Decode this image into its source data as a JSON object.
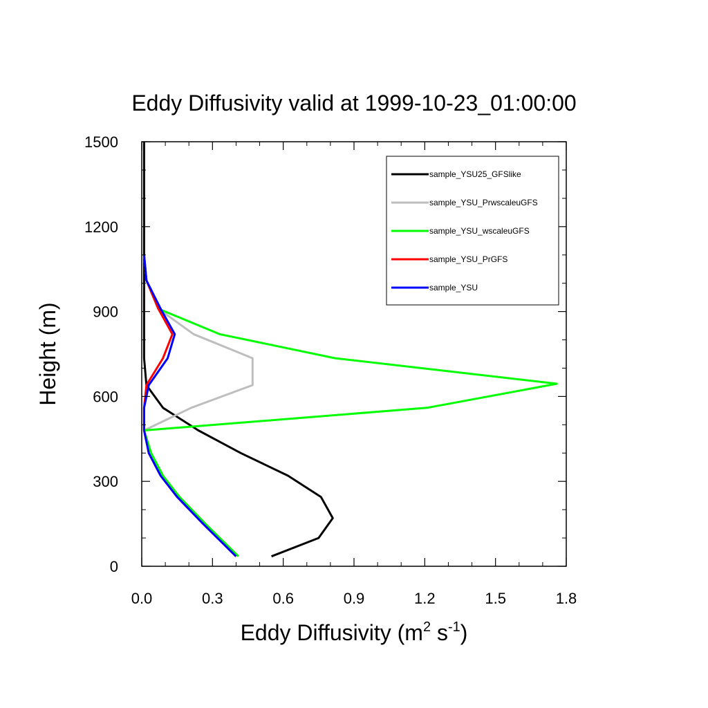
{
  "chart_data": {
    "type": "line",
    "title": "Eddy Diffusivity valid at 1999-10-23_01:00:00",
    "xlabel": {
      "base": "Eddy Diffusivity (m",
      "sup1": "2",
      "mid": " s",
      "sup2": "-1",
      "end": ")"
    },
    "ylabel": "Height (m)",
    "xlim": [
      0.0,
      1.8
    ],
    "ylim": [
      0,
      1500
    ],
    "xticks": [
      0.0,
      0.3,
      0.6,
      0.9,
      1.2,
      1.5,
      1.8
    ],
    "xtick_labels": [
      "0.0",
      "0.3",
      "0.6",
      "0.9",
      "1.2",
      "1.5",
      "1.8"
    ],
    "yticks": [
      0,
      300,
      600,
      900,
      1200,
      1500
    ],
    "ytick_labels": [
      "0",
      "300",
      "600",
      "900",
      "1200",
      "1500"
    ],
    "x_minor_step": 0.1,
    "y_minor_step": 100,
    "grid": false,
    "legend_position": "top-right",
    "series": [
      {
        "name": "sample_YSU25_GFSlike",
        "color": "#000000",
        "points": [
          [
            0.55,
            35
          ],
          [
            0.75,
            100
          ],
          [
            0.81,
            170
          ],
          [
            0.76,
            245
          ],
          [
            0.62,
            320
          ],
          [
            0.42,
            400
          ],
          [
            0.24,
            480
          ],
          [
            0.09,
            560
          ],
          [
            0.02,
            640
          ],
          [
            0.01,
            735
          ],
          [
            0.01,
            820
          ],
          [
            0.01,
            910
          ],
          [
            0.01,
            1010
          ],
          [
            0.01,
            1100
          ],
          [
            0.01,
            1200
          ],
          [
            0.01,
            1300
          ],
          [
            0.01,
            1400
          ],
          [
            0.01,
            1500
          ]
        ]
      },
      {
        "name": "sample_YSU_PrwscaleuGFS",
        "color": "#bebebe",
        "points": [
          [
            0.41,
            35
          ],
          [
            0.27,
            150
          ],
          [
            0.16,
            245
          ],
          [
            0.09,
            320
          ],
          [
            0.04,
            400
          ],
          [
            0.01,
            480
          ],
          [
            0.21,
            560
          ],
          [
            0.47,
            640
          ],
          [
            0.47,
            735
          ],
          [
            0.22,
            820
          ],
          [
            0.07,
            910
          ],
          [
            0.02,
            1010
          ],
          [
            0.01,
            1100
          ]
        ]
      },
      {
        "name": "sample_YSU_wscaleuGFS",
        "color": "#00ff00",
        "points": [
          [
            0.41,
            35
          ],
          [
            0.27,
            150
          ],
          [
            0.16,
            245
          ],
          [
            0.09,
            320
          ],
          [
            0.04,
            400
          ],
          [
            0.01,
            480
          ],
          [
            1.21,
            560
          ],
          [
            1.76,
            645
          ],
          [
            0.82,
            735
          ],
          [
            0.33,
            820
          ],
          [
            0.07,
            910
          ],
          [
            0.02,
            1010
          ],
          [
            0.01,
            1100
          ]
        ]
      },
      {
        "name": "sample_YSU_PrGFS",
        "color": "#ff0000",
        "points": [
          [
            0.4,
            35
          ],
          [
            0.26,
            150
          ],
          [
            0.15,
            245
          ],
          [
            0.08,
            320
          ],
          [
            0.03,
            400
          ],
          [
            0.01,
            480
          ],
          [
            0.01,
            560
          ],
          [
            0.02,
            640
          ],
          [
            0.09,
            735
          ],
          [
            0.13,
            820
          ],
          [
            0.07,
            910
          ],
          [
            0.02,
            1010
          ],
          [
            0.01,
            1100
          ]
        ]
      },
      {
        "name": "sample_YSU",
        "color": "#0000ff",
        "points": [
          [
            0.4,
            35
          ],
          [
            0.26,
            150
          ],
          [
            0.15,
            245
          ],
          [
            0.08,
            320
          ],
          [
            0.03,
            400
          ],
          [
            0.01,
            480
          ],
          [
            0.01,
            560
          ],
          [
            0.03,
            640
          ],
          [
            0.11,
            735
          ],
          [
            0.14,
            820
          ],
          [
            0.08,
            910
          ],
          [
            0.02,
            1010
          ],
          [
            0.01,
            1100
          ]
        ]
      }
    ]
  }
}
